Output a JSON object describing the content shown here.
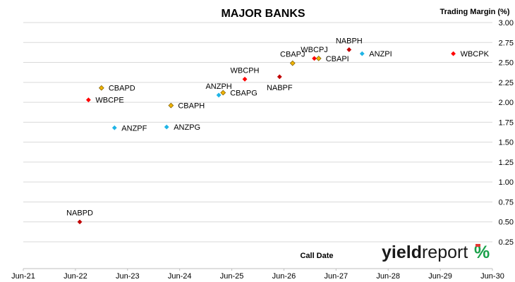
{
  "chart_data": {
    "type": "scatter",
    "title": "MAJOR BANKS",
    "xlabel": "Call Date",
    "ylabel": "Trading Margin  (%)",
    "x_ticks": [
      "Jun-21",
      "Jun-22",
      "Jun-23",
      "Jun-24",
      "Jun-25",
      "Jun-26",
      "Jun-27",
      "Jun-28",
      "Jun-29",
      "Jun-30"
    ],
    "y_ticks": [
      "0.25",
      "0.50",
      "0.75",
      "1.00",
      "1.25",
      "1.50",
      "1.75",
      "2.00",
      "2.25",
      "2.50",
      "2.75",
      "3.00"
    ],
    "xlim": [
      "2021-06",
      "2030-06"
    ],
    "ylim": [
      0.25,
      3.0
    ],
    "grid": "horizontal",
    "y_axis_side": "right",
    "issuer_colors": {
      "ANZ": "#1fb4e6",
      "CBA": "#f0b400",
      "NAB": "#c00000",
      "WBC": "#ff0000"
    },
    "points": [
      {
        "name": "NABPD",
        "x": "2022-07",
        "y": 0.5,
        "issuer": "NAB",
        "label_pos": "above"
      },
      {
        "name": "WBCPE",
        "x": "2022-09",
        "y": 2.03,
        "issuer": "WBC",
        "label_pos": "right"
      },
      {
        "name": "CBAPD",
        "x": "2022-12",
        "y": 2.18,
        "issuer": "CBA",
        "label_pos": "right"
      },
      {
        "name": "ANZPF",
        "x": "2023-03",
        "y": 1.68,
        "issuer": "ANZ",
        "label_pos": "right"
      },
      {
        "name": "ANZPG",
        "x": "2024-03",
        "y": 1.69,
        "issuer": "ANZ",
        "label_pos": "right"
      },
      {
        "name": "CBAPH",
        "x": "2024-04",
        "y": 1.96,
        "issuer": "CBA",
        "label_pos": "right"
      },
      {
        "name": "ANZPH",
        "x": "2025-03",
        "y": 2.09,
        "issuer": "ANZ",
        "label_pos": "above"
      },
      {
        "name": "CBAPG",
        "x": "2025-04",
        "y": 2.12,
        "issuer": "CBA",
        "label_pos": "right"
      },
      {
        "name": "WBCPH",
        "x": "2025-09",
        "y": 2.29,
        "issuer": "WBC",
        "label_pos": "above"
      },
      {
        "name": "NABPF",
        "x": "2026-05",
        "y": 2.32,
        "issuer": "NAB",
        "label_pos": "below"
      },
      {
        "name": "CBAPJ",
        "x": "2026-08",
        "y": 2.49,
        "issuer": "CBA",
        "label_pos": "above"
      },
      {
        "name": "WBCPJ",
        "x": "2027-01",
        "y": 2.55,
        "issuer": "WBC",
        "label_pos": "above"
      },
      {
        "name": "CBAPI",
        "x": "2027-02",
        "y": 2.55,
        "issuer": "CBA",
        "label_pos": "right"
      },
      {
        "name": "NABPH",
        "x": "2027-09",
        "y": 2.66,
        "issuer": "NAB",
        "label_pos": "above"
      },
      {
        "name": "ANZPI",
        "x": "2027-12",
        "y": 2.61,
        "issuer": "ANZ",
        "label_pos": "right"
      },
      {
        "name": "WBCPK",
        "x": "2029-09",
        "y": 2.61,
        "issuer": "WBC",
        "label_pos": "right"
      }
    ]
  },
  "watermark": {
    "word1": "yield",
    "word2": "report",
    "symbol": "%"
  }
}
